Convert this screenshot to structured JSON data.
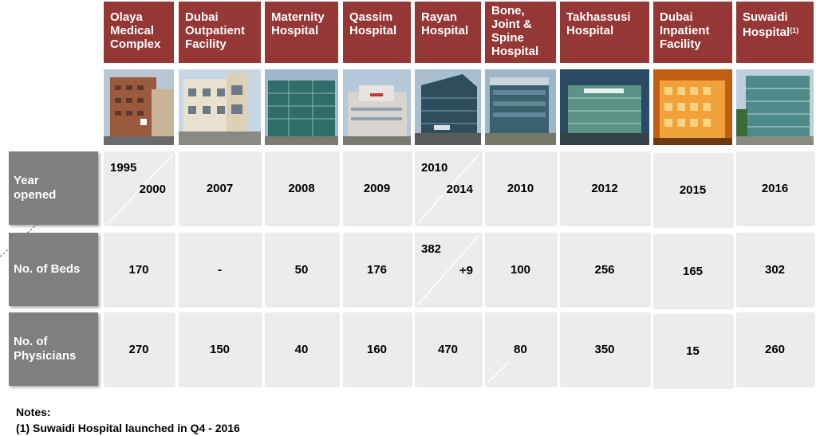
{
  "facilities": [
    {
      "name": "Olaya Medical Complex",
      "year_a": "1995",
      "year_b": "2000",
      "beds": "170",
      "physicians": "270"
    },
    {
      "name": "Dubai Outpatient Facility",
      "year": "2007",
      "beds": "-",
      "physicians": "150"
    },
    {
      "name": "Maternity Hospital",
      "year": "2008",
      "beds": "50",
      "physicians": "40"
    },
    {
      "name": "Qassim Hospital",
      "year": "2009",
      "beds": "176",
      "physicians": "160"
    },
    {
      "name": "Rayan Hospital",
      "year_a": "2010",
      "year_b": "2014",
      "beds_a": "382",
      "beds_b": "+9",
      "physicians": "470"
    },
    {
      "name": "Bone, Joint & Spine Hospital",
      "year": "2010",
      "beds": "100",
      "physicians": "80"
    },
    {
      "name": "Takhassusi Hospital",
      "year": "2012",
      "beds": "256",
      "physicians": "350"
    },
    {
      "name": "Dubai Inpatient Facility",
      "year": "2015",
      "beds": "165",
      "physicians": "15"
    },
    {
      "name": "Suwaidi Hospital",
      "footnote_marker": "(1)",
      "year": "2016",
      "beds": "302",
      "physicians": "260"
    }
  ],
  "row_labels": {
    "year": "Year opened",
    "beds": "No. of Beds",
    "physicians": "No. of Physicians"
  },
  "notes": {
    "heading": "Notes:",
    "items": [
      "(1) Suwaidi Hospital launched in Q4 - 2016"
    ]
  }
}
